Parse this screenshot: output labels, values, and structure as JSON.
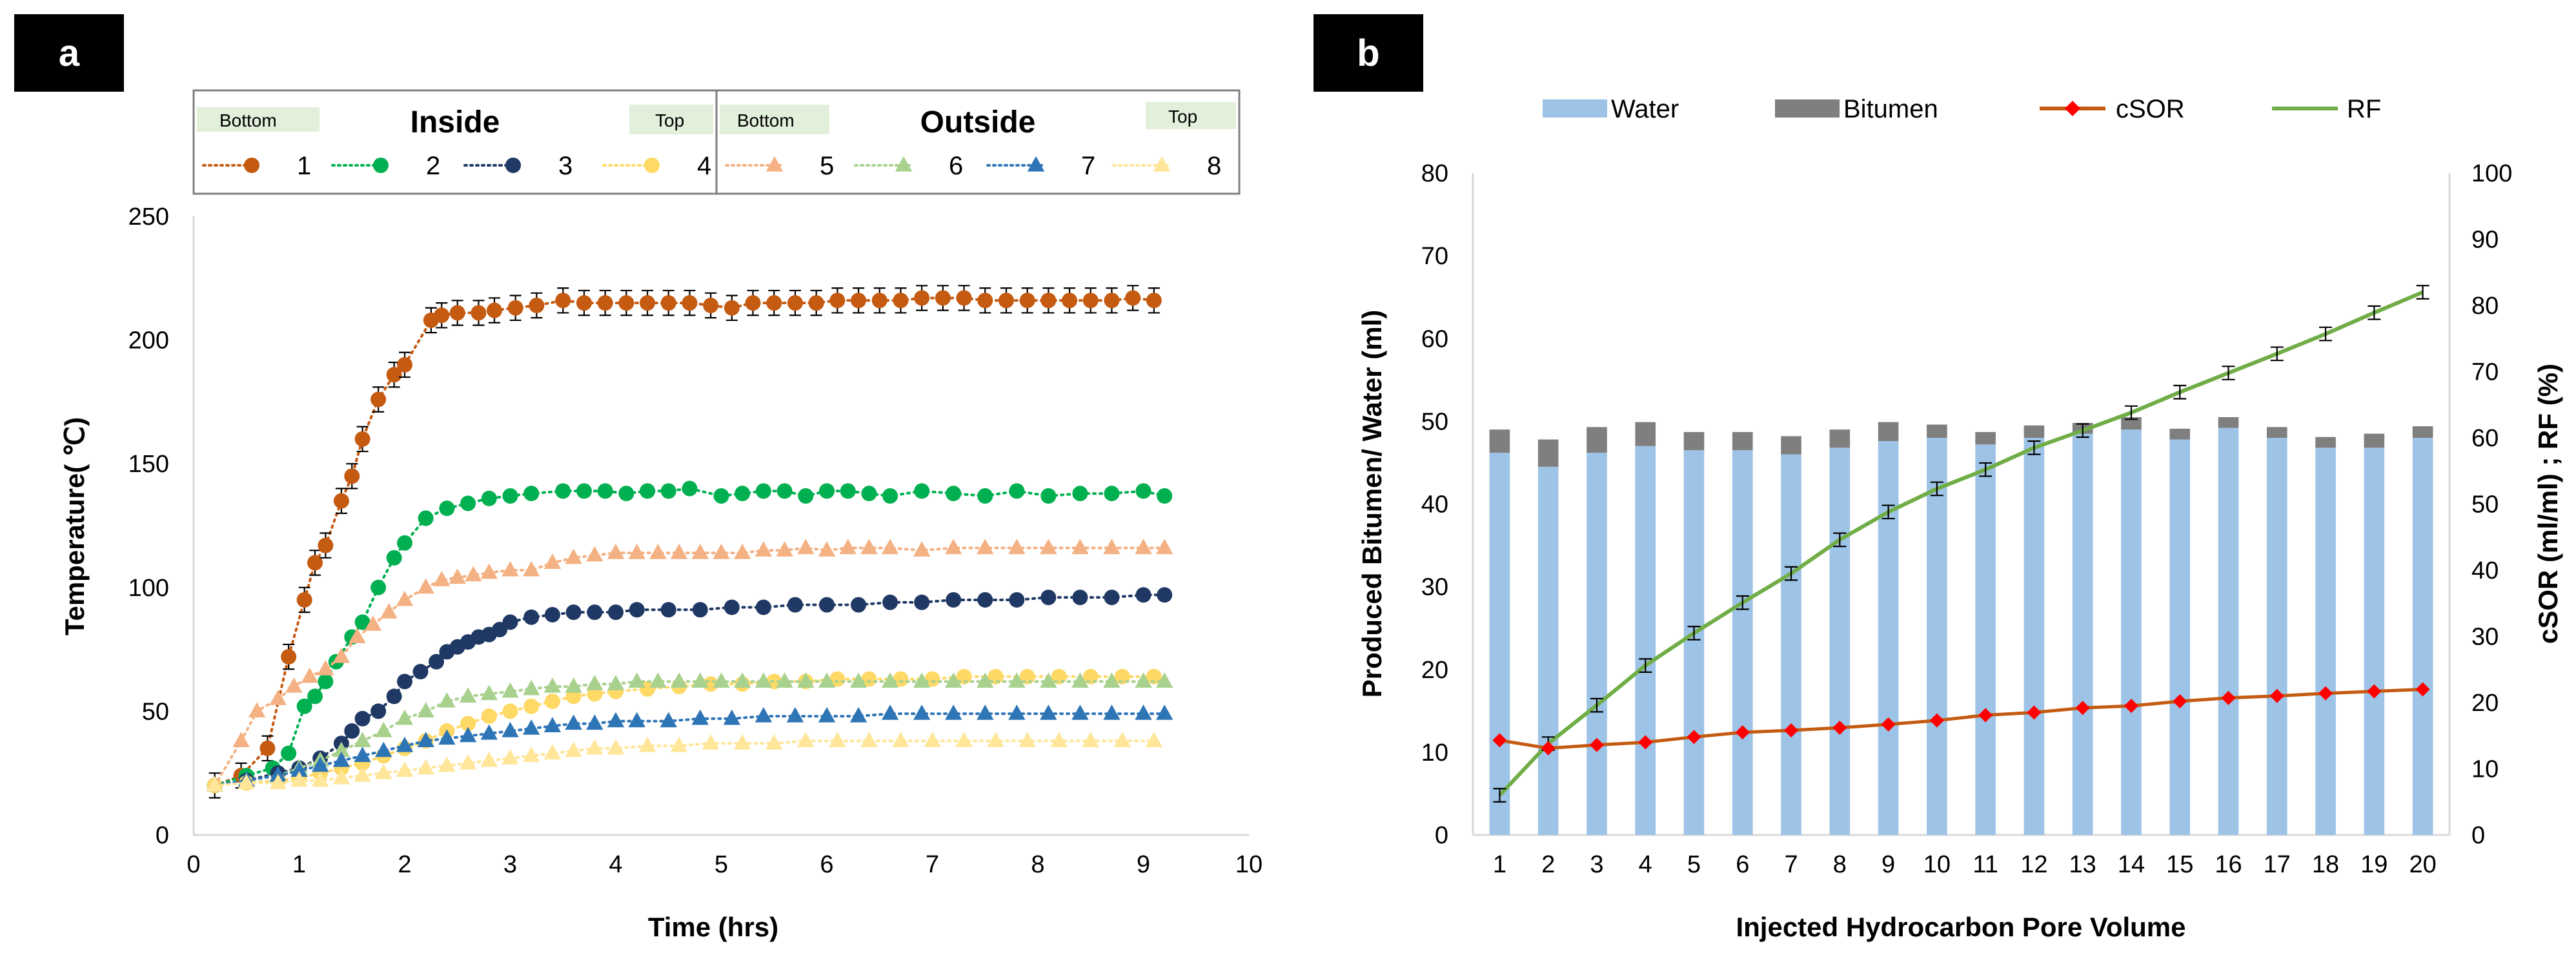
{
  "panels": {
    "a": "a",
    "b": "b"
  },
  "chart_data": [
    {
      "id": "a",
      "type": "scatter",
      "title": "",
      "xlabel": "Time (hrs)",
      "ylabel": "Temperature( ℃)",
      "xlim": [
        0,
        10
      ],
      "ylim": [
        0,
        250
      ],
      "xticks": [
        0,
        1,
        2,
        3,
        4,
        5,
        6,
        7,
        8,
        9,
        10
      ],
      "yticks": [
        0,
        50,
        100,
        150,
        200,
        250
      ],
      "legend_groups": [
        {
          "title": "Inside",
          "left_tag": "Bottom",
          "right_tag": "Top"
        },
        {
          "title": "Outside",
          "left_tag": "Bottom",
          "right_tag": "Top"
        }
      ],
      "series": [
        {
          "name": "1",
          "group": "Inside",
          "marker": "circle",
          "color": "#c55a11",
          "x": [
            0.2,
            0.45,
            0.7,
            0.9,
            1.05,
            1.15,
            1.25,
            1.4,
            1.5,
            1.6,
            1.75,
            1.9,
            2.0,
            2.25,
            2.35,
            2.5,
            2.7,
            2.85,
            3.05,
            3.25,
            3.5,
            3.7,
            3.9,
            4.1,
            4.3,
            4.5,
            4.7,
            4.9,
            5.1,
            5.3,
            5.5,
            5.7,
            5.9,
            6.1,
            6.3,
            6.5,
            6.7,
            6.9,
            7.1,
            7.3,
            7.5,
            7.7,
            7.9,
            8.1,
            8.3,
            8.5,
            8.7,
            8.9,
            9.1
          ],
          "y": [
            20,
            24,
            35,
            72,
            95,
            110,
            117,
            135,
            145,
            160,
            176,
            186,
            190,
            208,
            210,
            211,
            211,
            212,
            213,
            214,
            216,
            215,
            215,
            215,
            215,
            215,
            215,
            214,
            213,
            215,
            215,
            215,
            215,
            216,
            216,
            216,
            216,
            217,
            217,
            217,
            216,
            216,
            216,
            216,
            216,
            216,
            216,
            217,
            216
          ],
          "error": 5
        },
        {
          "name": "2",
          "group": "Inside",
          "marker": "circle",
          "color": "#00b050",
          "x": [
            0.2,
            0.5,
            0.75,
            0.9,
            1.05,
            1.15,
            1.25,
            1.35,
            1.5,
            1.6,
            1.75,
            1.9,
            2.0,
            2.2,
            2.4,
            2.6,
            2.8,
            3.0,
            3.2,
            3.5,
            3.7,
            3.9,
            4.1,
            4.3,
            4.5,
            4.7,
            5.0,
            5.2,
            5.4,
            5.6,
            5.8,
            6.0,
            6.2,
            6.4,
            6.6,
            6.9,
            7.2,
            7.5,
            7.8,
            8.1,
            8.4,
            8.7,
            9.0,
            9.2
          ],
          "y": [
            20,
            24,
            27,
            33,
            52,
            56,
            62,
            70,
            80,
            86,
            100,
            112,
            118,
            128,
            132,
            134,
            136,
            137,
            138,
            139,
            139,
            139,
            138,
            139,
            139,
            140,
            137,
            138,
            139,
            139,
            137,
            139,
            139,
            138,
            137,
            139,
            138,
            137,
            139,
            137,
            138,
            138,
            139,
            137
          ],
          "error": 0
        },
        {
          "name": "3",
          "group": "Inside",
          "marker": "circle",
          "color": "#1f3864",
          "x": [
            0.2,
            0.5,
            0.8,
            1.0,
            1.2,
            1.4,
            1.5,
            1.6,
            1.75,
            1.9,
            2.0,
            2.15,
            2.3,
            2.4,
            2.5,
            2.6,
            2.7,
            2.8,
            2.9,
            3.0,
            3.2,
            3.4,
            3.6,
            3.8,
            4.0,
            4.2,
            4.5,
            4.8,
            5.1,
            5.4,
            5.7,
            6.0,
            6.3,
            6.6,
            6.9,
            7.2,
            7.5,
            7.8,
            8.1,
            8.4,
            8.7,
            9.0,
            9.2
          ],
          "y": [
            20,
            22,
            25,
            27,
            31,
            37,
            42,
            47,
            50,
            56,
            62,
            66,
            70,
            74,
            76,
            78,
            80,
            81,
            83,
            86,
            88,
            89,
            90,
            90,
            90,
            91,
            91,
            91,
            92,
            92,
            93,
            93,
            93,
            94,
            94,
            95,
            95,
            95,
            96,
            96,
            96,
            97,
            97
          ],
          "error": 0
        },
        {
          "name": "4",
          "group": "Inside",
          "marker": "circle",
          "color": "#ffd966",
          "x": [
            0.2,
            0.5,
            0.8,
            1.0,
            1.2,
            1.4,
            1.6,
            1.8,
            2.0,
            2.2,
            2.4,
            2.6,
            2.8,
            3.0,
            3.2,
            3.4,
            3.6,
            3.8,
            4.0,
            4.3,
            4.6,
            4.9,
            5.2,
            5.5,
            5.8,
            6.1,
            6.4,
            6.7,
            7.0,
            7.3,
            7.6,
            7.9,
            8.2,
            8.5,
            8.8,
            9.1
          ],
          "y": [
            20,
            21,
            22,
            23,
            25,
            27,
            29,
            32,
            35,
            38,
            42,
            45,
            48,
            50,
            52,
            54,
            56,
            57,
            58,
            59,
            60,
            61,
            61,
            62,
            62,
            63,
            63,
            63,
            63,
            64,
            64,
            64,
            64,
            64,
            64,
            64
          ],
          "error": 0
        },
        {
          "name": "5",
          "group": "Outside",
          "marker": "triangle",
          "color": "#f4b183",
          "x": [
            0.2,
            0.45,
            0.6,
            0.8,
            0.95,
            1.1,
            1.25,
            1.4,
            1.55,
            1.7,
            1.85,
            2.0,
            2.2,
            2.35,
            2.5,
            2.65,
            2.8,
            3.0,
            3.2,
            3.4,
            3.6,
            3.8,
            4.0,
            4.2,
            4.4,
            4.6,
            4.8,
            5.0,
            5.2,
            5.4,
            5.6,
            5.8,
            6.0,
            6.2,
            6.4,
            6.6,
            6.9,
            7.2,
            7.5,
            7.8,
            8.1,
            8.4,
            8.7,
            9.0,
            9.2
          ],
          "y": [
            20,
            38,
            50,
            55,
            60,
            64,
            67,
            72,
            80,
            85,
            90,
            95,
            100,
            103,
            104,
            105,
            106,
            107,
            107,
            110,
            112,
            113,
            114,
            114,
            114,
            114,
            114,
            114,
            114,
            115,
            115,
            116,
            115,
            116,
            116,
            116,
            115,
            116,
            116,
            116,
            116,
            116,
            116,
            116,
            116
          ],
          "error": 0
        },
        {
          "name": "6",
          "group": "Outside",
          "marker": "triangle",
          "color": "#a9d18e",
          "x": [
            0.2,
            0.5,
            0.8,
            1.0,
            1.2,
            1.4,
            1.6,
            1.8,
            2.0,
            2.2,
            2.4,
            2.6,
            2.8,
            3.0,
            3.2,
            3.4,
            3.6,
            3.8,
            4.0,
            4.2,
            4.4,
            4.6,
            4.8,
            5.0,
            5.2,
            5.4,
            5.6,
            5.8,
            6.0,
            6.3,
            6.6,
            6.9,
            7.2,
            7.5,
            7.8,
            8.1,
            8.4,
            8.7,
            9.0,
            9.2
          ],
          "y": [
            20,
            22,
            24,
            27,
            30,
            34,
            38,
            42,
            47,
            50,
            54,
            56,
            57,
            58,
            59,
            60,
            60,
            61,
            61,
            62,
            62,
            62,
            62,
            62,
            62,
            62,
            62,
            62,
            62,
            62,
            62,
            62,
            62,
            62,
            62,
            62,
            62,
            62,
            62,
            62
          ],
          "error": 0
        },
        {
          "name": "7",
          "group": "Outside",
          "marker": "triangle",
          "color": "#2e75b6",
          "x": [
            0.2,
            0.5,
            0.8,
            1.0,
            1.2,
            1.4,
            1.6,
            1.8,
            2.0,
            2.2,
            2.4,
            2.6,
            2.8,
            3.0,
            3.2,
            3.4,
            3.6,
            3.8,
            4.0,
            4.2,
            4.5,
            4.8,
            5.1,
            5.4,
            5.7,
            6.0,
            6.3,
            6.6,
            6.9,
            7.2,
            7.5,
            7.8,
            8.1,
            8.4,
            8.7,
            9.0,
            9.2
          ],
          "y": [
            20,
            22,
            24,
            26,
            28,
            30,
            32,
            34,
            36,
            38,
            39,
            40,
            41,
            42,
            43,
            44,
            45,
            45,
            46,
            46,
            46,
            47,
            47,
            48,
            48,
            48,
            48,
            49,
            49,
            49,
            49,
            49,
            49,
            49,
            49,
            49,
            49
          ],
          "error": 0
        },
        {
          "name": "8",
          "group": "Outside",
          "marker": "triangle",
          "color": "#ffe699",
          "x": [
            0.2,
            0.5,
            0.8,
            1.0,
            1.2,
            1.4,
            1.6,
            1.8,
            2.0,
            2.2,
            2.4,
            2.6,
            2.8,
            3.0,
            3.2,
            3.4,
            3.6,
            3.8,
            4.0,
            4.3,
            4.6,
            4.9,
            5.2,
            5.5,
            5.8,
            6.1,
            6.4,
            6.7,
            7.0,
            7.3,
            7.6,
            7.9,
            8.2,
            8.5,
            8.8,
            9.1
          ],
          "y": [
            20,
            21,
            21,
            22,
            22,
            23,
            24,
            25,
            26,
            27,
            28,
            29,
            30,
            31,
            32,
            33,
            34,
            35,
            35,
            36,
            36,
            37,
            37,
            37,
            38,
            38,
            38,
            38,
            38,
            38,
            38,
            38,
            38,
            38,
            38,
            38
          ],
          "error": 0
        }
      ]
    },
    {
      "id": "b",
      "type": "bar",
      "title": "",
      "xlabel": "Injected Hydrocarbon  Pore Volume",
      "ylabel": "Produced Bitumen/ Water (ml)",
      "y2label": "cSOR  (ml/ml) ;  RF  (%)",
      "categories": [
        "1",
        "2",
        "3",
        "4",
        "5",
        "6",
        "7",
        "8",
        "9",
        "10",
        "11",
        "12",
        "13",
        "14",
        "15",
        "16",
        "17",
        "18",
        "19",
        "20"
      ],
      "ylim": [
        0,
        80
      ],
      "y2lim": [
        0,
        100
      ],
      "yticks": [
        0,
        10,
        20,
        30,
        40,
        50,
        60,
        70,
        80
      ],
      "y2ticks": [
        0,
        10,
        20,
        30,
        40,
        50,
        60,
        70,
        80,
        90,
        100
      ],
      "legend": [
        "Water",
        "Bitumen",
        "cSOR",
        "RF"
      ],
      "series": [
        {
          "name": "Water",
          "type": "bar",
          "axis": "left",
          "color": "#9dc3e6",
          "values": [
            46.2,
            44.5,
            46.2,
            47.0,
            46.5,
            46.5,
            46.0,
            46.8,
            47.6,
            48.0,
            47.2,
            48.0,
            48.5,
            49.0,
            47.8,
            49.2,
            48.0,
            46.8,
            46.8,
            48.0
          ]
        },
        {
          "name": "Bitumen",
          "type": "bar_stack",
          "axis": "left",
          "color": "#7f7f7f",
          "values": [
            2.8,
            3.3,
            3.1,
            2.9,
            2.2,
            2.2,
            2.2,
            2.2,
            2.3,
            1.6,
            1.5,
            1.5,
            1.3,
            1.5,
            1.3,
            1.3,
            1.3,
            1.3,
            1.7,
            1.4
          ]
        },
        {
          "name": "cSOR",
          "type": "line",
          "axis": "right",
          "color": "#c55a11",
          "marker_color": "#ff0000",
          "values": [
            14.3,
            13.1,
            13.6,
            14.0,
            14.8,
            15.5,
            15.8,
            16.2,
            16.7,
            17.3,
            18.1,
            18.5,
            19.2,
            19.5,
            20.2,
            20.7,
            21.0,
            21.4,
            21.7,
            22.0
          ]
        },
        {
          "name": "RF",
          "type": "line",
          "axis": "right",
          "color": "#70ad47",
          "values": [
            6.0,
            13.8,
            19.6,
            25.6,
            30.5,
            35.1,
            39.5,
            44.6,
            48.8,
            52.3,
            55.2,
            58.5,
            61.1,
            63.8,
            66.9,
            69.8,
            72.7,
            75.7,
            78.9,
            82.0
          ],
          "error": 1.0
        }
      ]
    }
  ]
}
